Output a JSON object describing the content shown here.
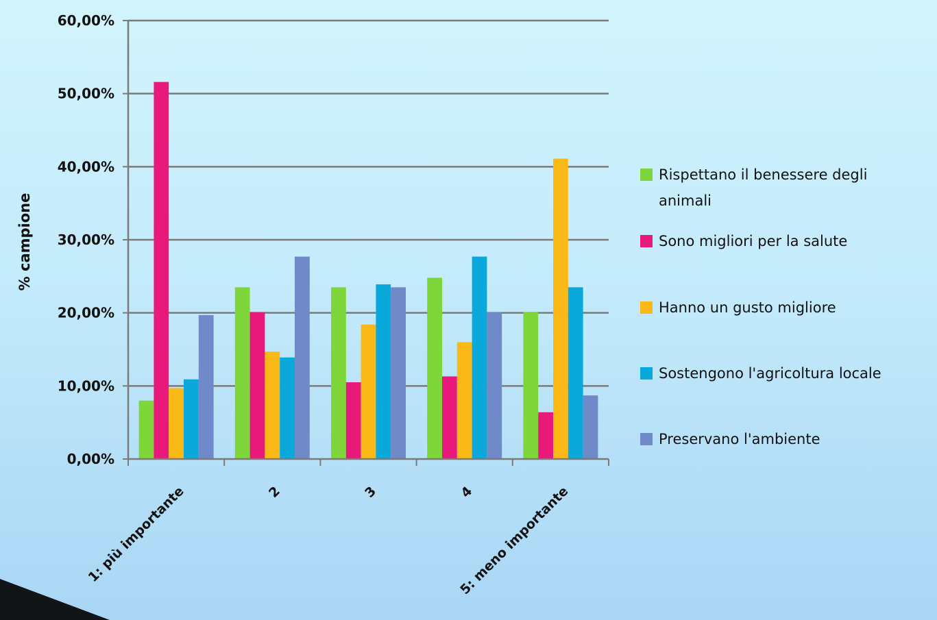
{
  "chart_data": {
    "type": "bar",
    "title": "",
    "xlabel": "",
    "ylabel": "% campione",
    "ylim": [
      0,
      60
    ],
    "yticks": [
      "0,00%",
      "10,00%",
      "20,00%",
      "30,00%",
      "40,00%",
      "50,00%",
      "60,00%"
    ],
    "categories": [
      "1: più importante",
      "2",
      "3",
      "4",
      "5: meno importante"
    ],
    "grid": true,
    "legend_position": "right",
    "series": [
      {
        "name": "Rispettano il benessere degli animali",
        "color": "#7ed63a",
        "values": [
          8.0,
          23.5,
          23.5,
          24.8,
          20.1
        ]
      },
      {
        "name": "Sono migliori per la salute",
        "color": "#e8197a",
        "values": [
          51.6,
          20.1,
          10.5,
          11.3,
          6.4
        ]
      },
      {
        "name": "Hanno un gusto migliore",
        "color": "#fbb917",
        "values": [
          9.7,
          14.7,
          18.4,
          16.0,
          41.1
        ]
      },
      {
        "name": "Sostengono l'agricoltura locale",
        "color": "#0ba8dc",
        "values": [
          10.9,
          13.9,
          23.9,
          27.7,
          23.5
        ]
      },
      {
        "name": "Preservano l'ambiente",
        "color": "#7089c9",
        "values": [
          19.7,
          27.7,
          23.5,
          20.1,
          8.7
        ]
      }
    ]
  }
}
